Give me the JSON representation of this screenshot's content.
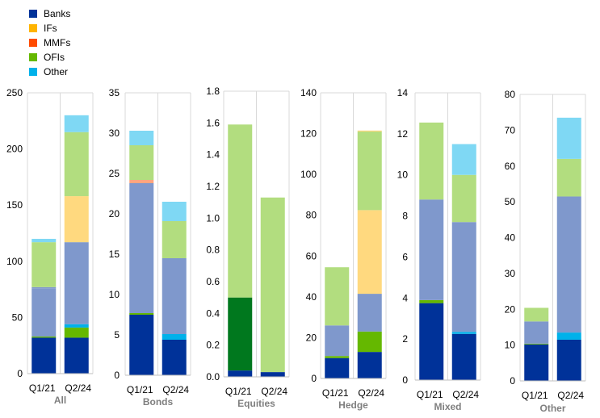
{
  "legend": [
    {
      "label": "Banks",
      "color": "#003299"
    },
    {
      "label": "IFs",
      "color": "#FFB400"
    },
    {
      "label": "MMFs",
      "color": "#FF4B00"
    },
    {
      "label": "OFIs",
      "color": "#65B800"
    },
    {
      "label": "Other",
      "color": "#00B1EA"
    }
  ],
  "chart_data": [
    {
      "type": "bar",
      "stacked": true,
      "title": "All",
      "categories": [
        "Q1/21",
        "Q2/24"
      ],
      "ylim": [
        0,
        250
      ],
      "yticks": [
        0,
        50,
        100,
        150,
        200,
        250
      ],
      "segments": [
        [
          {
            "value": 32,
            "color": "#003299"
          },
          {
            "value": 1,
            "color": "#65B800"
          },
          {
            "value": 43,
            "color": "#7F98CC"
          },
          {
            "value": 1,
            "color": "#7F98CC"
          },
          {
            "value": 40,
            "color": "#B2DD7F"
          },
          {
            "value": 3,
            "color": "#7FD8F4"
          }
        ],
        [
          {
            "value": 32,
            "color": "#003299"
          },
          {
            "value": 9,
            "color": "#65B800"
          },
          {
            "value": 3,
            "color": "#00B1EA"
          },
          {
            "value": 73,
            "color": "#7F98CC"
          },
          {
            "value": 41,
            "color": "#FFD97F"
          },
          {
            "value": 57,
            "color": "#B2DD7F"
          },
          {
            "value": 15,
            "color": "#7FD8F4"
          }
        ]
      ]
    },
    {
      "type": "bar",
      "stacked": true,
      "title": "Bonds",
      "categories": [
        "Q1/21",
        "Q2/24"
      ],
      "ylim": [
        0,
        35
      ],
      "yticks": [
        0,
        5,
        10,
        15,
        20,
        25,
        30,
        35
      ],
      "segments": [
        [
          {
            "value": 7.5,
            "color": "#003299"
          },
          {
            "value": 0.2,
            "color": "#65B800"
          },
          {
            "value": 16.1,
            "color": "#7F98CC"
          },
          {
            "value": 0.4,
            "color": "#FFA57F"
          },
          {
            "value": 4.3,
            "color": "#B2DD7F"
          },
          {
            "value": 1.8,
            "color": "#7FD8F4"
          }
        ],
        [
          {
            "value": 4.4,
            "color": "#003299"
          },
          {
            "value": 0.7,
            "color": "#00B1EA"
          },
          {
            "value": 9.4,
            "color": "#7F98CC"
          },
          {
            "value": 4.6,
            "color": "#B2DD7F"
          },
          {
            "value": 2.4,
            "color": "#7FD8F4"
          }
        ]
      ]
    },
    {
      "type": "bar",
      "stacked": true,
      "title": "Equities",
      "categories": [
        "Q1/21",
        "Q2/24"
      ],
      "ylim": [
        0,
        1.8
      ],
      "yticks": [
        0.0,
        0.2,
        0.4,
        0.6,
        0.8,
        1.0,
        1.2,
        1.4,
        1.6,
        1.8
      ],
      "segments": [
        [
          {
            "value": 0.04,
            "color": "#003299"
          },
          {
            "value": 0.46,
            "color": "#00781E"
          },
          {
            "value": 1.09,
            "color": "#B2DD7F"
          }
        ],
        [
          {
            "value": 0.03,
            "color": "#003299"
          },
          {
            "value": 1.1,
            "color": "#B2DD7F"
          }
        ]
      ]
    },
    {
      "type": "bar",
      "stacked": true,
      "title": "Hedge",
      "categories": [
        "Q1/21",
        "Q2/24"
      ],
      "ylim": [
        0,
        140
      ],
      "yticks": [
        0,
        20,
        40,
        60,
        80,
        100,
        120,
        140
      ],
      "segments": [
        [
          {
            "value": 10,
            "color": "#003299"
          },
          {
            "value": 1,
            "color": "#65B800"
          },
          {
            "value": 15,
            "color": "#7F98CC"
          },
          {
            "value": 28.5,
            "color": "#B2DD7F"
          }
        ],
        [
          {
            "value": 13,
            "color": "#003299"
          },
          {
            "value": 10,
            "color": "#65B800"
          },
          {
            "value": 18.5,
            "color": "#7F98CC"
          },
          {
            "value": 41,
            "color": "#FFD97F"
          },
          {
            "value": 38.5,
            "color": "#B2DD7F"
          },
          {
            "value": 0.5,
            "color": "#FFD97F"
          }
        ]
      ]
    },
    {
      "type": "bar",
      "stacked": true,
      "title": "Mixed",
      "categories": [
        "Q1/21",
        "Q2/24"
      ],
      "ylim": [
        0,
        14
      ],
      "yticks": [
        0,
        2,
        4,
        6,
        8,
        10,
        12,
        14
      ],
      "segments": [
        [
          {
            "value": 3.75,
            "color": "#003299"
          },
          {
            "value": 0.15,
            "color": "#65B800"
          },
          {
            "value": 4.9,
            "color": "#7F98CC"
          },
          {
            "value": 3.75,
            "color": "#B2DD7F"
          }
        ],
        [
          {
            "value": 2.25,
            "color": "#003299"
          },
          {
            "value": 0.1,
            "color": "#00B1EA"
          },
          {
            "value": 5.35,
            "color": "#7F98CC"
          },
          {
            "value": 2.3,
            "color": "#B2DD7F"
          },
          {
            "value": 1.5,
            "color": "#7FD8F4"
          }
        ]
      ]
    },
    {
      "type": "bar",
      "stacked": true,
      "title": "Other",
      "categories": [
        "Q1/21",
        "Q2/24"
      ],
      "ylim": [
        0,
        80
      ],
      "yticks": [
        0,
        10,
        20,
        30,
        40,
        50,
        60,
        70,
        80
      ],
      "segments": [
        [
          {
            "value": 10.2,
            "color": "#003299"
          },
          {
            "value": 0.2,
            "color": "#65B800"
          },
          {
            "value": 6.2,
            "color": "#7F98CC"
          },
          {
            "value": 3.8,
            "color": "#B2DD7F"
          }
        ],
        [
          {
            "value": 11.5,
            "color": "#003299"
          },
          {
            "value": 2,
            "color": "#00B1EA"
          },
          {
            "value": 38,
            "color": "#7F98CC"
          },
          {
            "value": 10.5,
            "color": "#B2DD7F"
          },
          {
            "value": 11.5,
            "color": "#7FD8F4"
          }
        ]
      ]
    }
  ]
}
